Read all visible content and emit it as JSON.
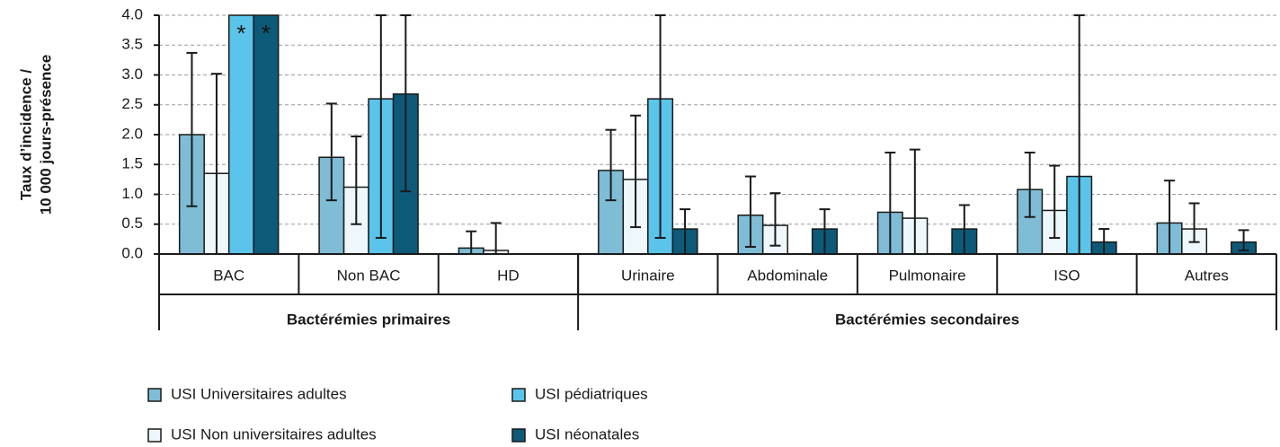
{
  "chart_data": {
    "type": "bar",
    "ylabel": [
      "Taux d’incidence /",
      "10 000 jours-présence"
    ],
    "groups": [
      {
        "label": "Bactérémies primaires",
        "categories": [
          "BAC",
          "Non BAC",
          "HD"
        ]
      },
      {
        "label": "Bactérémies secondaires",
        "categories": [
          "Urinaire",
          "Abdominale",
          "Pulmonaire",
          "ISO",
          "Autres"
        ]
      }
    ],
    "ylim": [
      0,
      4
    ],
    "yticks": [
      {
        "value": 0,
        "label": "0.0"
      },
      0.5,
      {
        "value": 1,
        "label": "1.0"
      },
      1.5,
      {
        "value": 2,
        "label": "2.0"
      },
      2.5,
      {
        "value": 3,
        "label": "3.0"
      },
      3.5,
      {
        "value": 4,
        "label": "4.0"
      }
    ],
    "grid": true,
    "series": [
      {
        "name": "USI Universitaires adultes",
        "color": "#7fbcd6",
        "values": [
          2.0,
          1.62,
          0.1,
          1.4,
          0.65,
          0.7,
          1.08,
          0.52
        ],
        "error_low": [
          0.8,
          0.9,
          0,
          0.9,
          0.12,
          0,
          0.62,
          0
        ],
        "error_high": [
          3.37,
          2.52,
          0.38,
          2.08,
          1.3,
          1.7,
          1.7,
          1.23
        ]
      },
      {
        "name": "USI Non universitaires adultes",
        "color": "#eef7fb",
        "values": [
          1.35,
          1.12,
          0.06,
          1.25,
          0.48,
          0.6,
          0.73,
          0.42
        ],
        "error_low": [
          0,
          0.5,
          0,
          0.45,
          0.14,
          0,
          0.27,
          0.2
        ],
        "error_high": [
          3.02,
          1.97,
          0.52,
          2.32,
          1.02,
          1.75,
          1.48,
          0.85
        ]
      },
      {
        "name": "USI pédiatriques",
        "color": "#5bc4ea",
        "values": [
          4.0,
          2.6,
          null,
          2.6,
          null,
          null,
          1.3,
          null
        ],
        "error_low": [
          null,
          0.27,
          null,
          0.27,
          null,
          null,
          0,
          null
        ],
        "error_high": [
          null,
          4.0,
          null,
          4.0,
          null,
          null,
          4.0,
          null
        ]
      },
      {
        "name": "USI néonatales",
        "color": "#0d5a78",
        "values": [
          4.0,
          2.68,
          null,
          0.42,
          0.42,
          0.42,
          0.2,
          0.2
        ],
        "error_low": [
          null,
          1.05,
          null,
          0,
          0,
          0,
          0,
          0.06
        ],
        "error_high": [
          null,
          4.0,
          null,
          0.75,
          0.75,
          0.82,
          0.42,
          0.4
        ]
      }
    ],
    "annotations": [
      {
        "text": "*",
        "category": "BAC",
        "series": "USI pédiatriques"
      },
      {
        "text": "*",
        "category": "BAC",
        "series": "USI néonatales"
      }
    ]
  }
}
